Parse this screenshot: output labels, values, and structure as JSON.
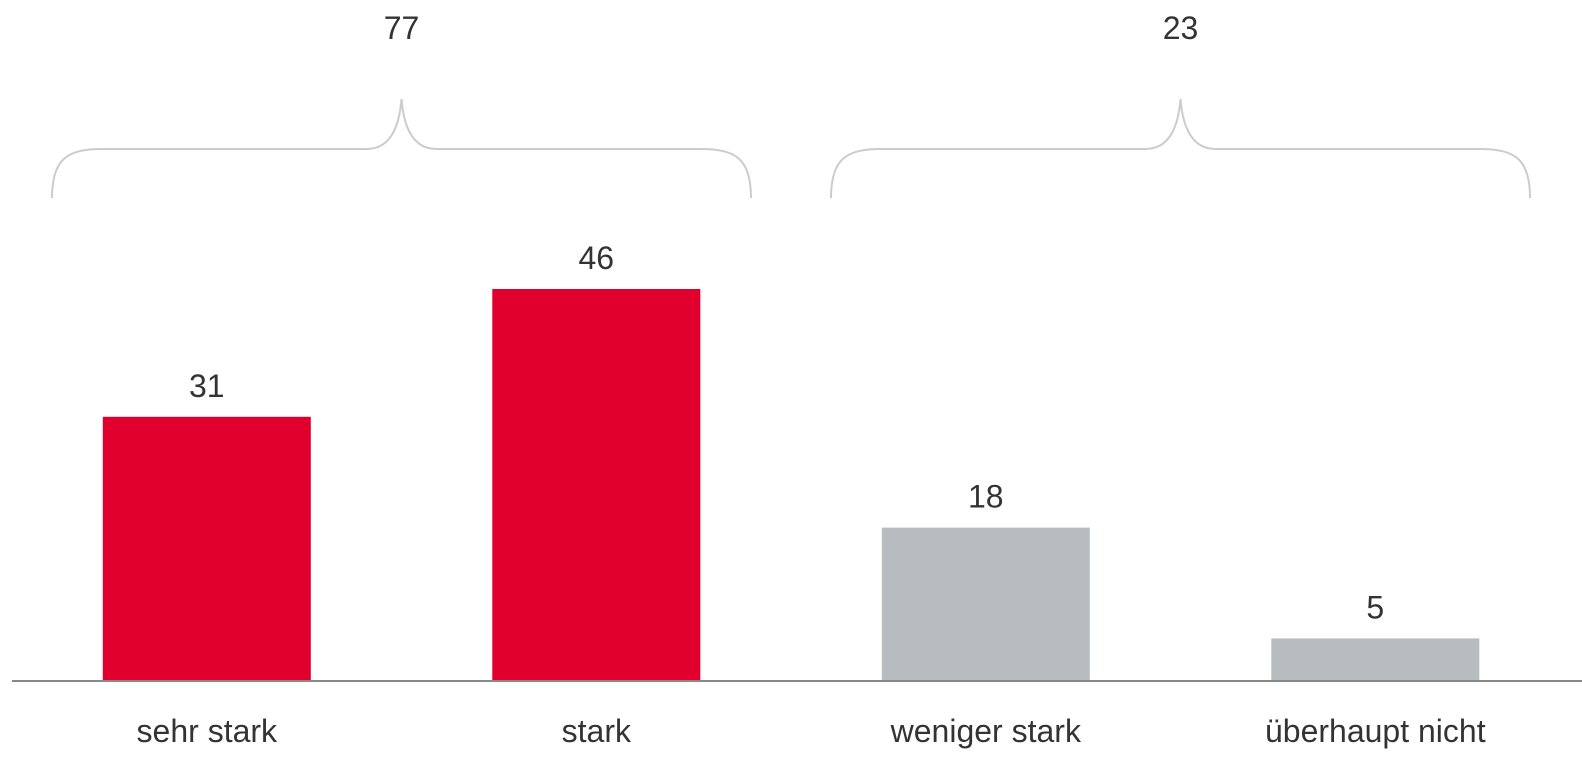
{
  "chart_data": {
    "type": "bar",
    "categories": [
      "sehr stark",
      "stark",
      "weniger stark",
      "überhaupt nicht"
    ],
    "values": [
      31,
      46,
      18,
      5
    ],
    "value_labels": [
      "31",
      "46",
      "18",
      "5"
    ],
    "bar_colors": [
      "#e1002d",
      "#e1002d",
      "#b7bcc0",
      "#b7bcc0"
    ],
    "groups": [
      {
        "label": "77",
        "from": 0,
        "to": 1
      },
      {
        "label": "23",
        "from": 2,
        "to": 3
      }
    ],
    "title": "",
    "xlabel": "",
    "ylabel": "",
    "ylim": [
      0,
      46
    ],
    "grid": false,
    "colors": {
      "positive": "#e1002d",
      "negative": "#b7bcc0",
      "brace": "#cccccc",
      "axis": "#888888",
      "text": "#333333"
    }
  }
}
